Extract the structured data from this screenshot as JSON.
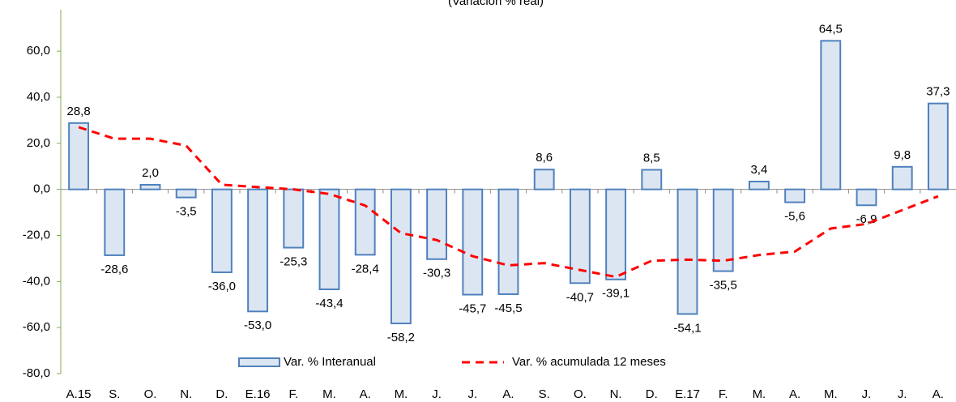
{
  "chart_data": {
    "type": "bar",
    "title": "(Variación % real)",
    "categories": [
      "A.15",
      "S.",
      "O.",
      "N.",
      "D.",
      "E.16",
      "F.",
      "M.",
      "A.",
      "M.",
      "J.",
      "J.",
      "A.",
      "S.",
      "O.",
      "N.",
      "D.",
      "E.17",
      "F.",
      "M.",
      "A.",
      "M.",
      "J.",
      "J.",
      "A."
    ],
    "series": [
      {
        "name": "Var. % Interanual",
        "type": "bar",
        "color": "#dce6f2",
        "edge_color": "#4f81bd",
        "values": [
          28.8,
          -28.6,
          2.0,
          -3.5,
          -36.0,
          -53.0,
          -25.3,
          -43.4,
          -28.4,
          -58.2,
          -30.3,
          -45.7,
          -45.5,
          8.6,
          -40.7,
          -39.1,
          8.5,
          -54.1,
          -35.5,
          3.4,
          -5.6,
          64.5,
          -6.9,
          9.8,
          37.3
        ],
        "value_labels": [
          "28,8",
          "-28,6",
          "2,0",
          "-3,5",
          "-36,0",
          "-53,0",
          "-25,3",
          "-43,4",
          "-28,4",
          "-58,2",
          "-30,3",
          "-45,7",
          "-45,5",
          "8,6",
          "-40,7",
          "-39,1",
          "8,5",
          "-54,1",
          "-35,5",
          "3,4",
          "-5,6",
          "64,5",
          "-6,9",
          "9,8",
          "37,3"
        ]
      },
      {
        "name": "Var. % acumulada 12 meses",
        "type": "line",
        "color": "#ff0000",
        "dashed": true,
        "values": [
          27,
          22,
          22,
          19,
          2,
          1,
          0,
          -2,
          -7,
          -19,
          -22,
          -29,
          -33,
          -32,
          -35,
          -38,
          -31,
          -30.5,
          -31,
          -28.5,
          -27,
          -17,
          -15,
          -9,
          -3
        ]
      }
    ],
    "ylim": [
      -80,
      78
    ],
    "yticks": [
      {
        "value": -80,
        "label": "-80,0"
      },
      {
        "value": -60,
        "label": "-60,0"
      },
      {
        "value": -40,
        "label": "-40,0"
      },
      {
        "value": -20,
        "label": "-20,0"
      },
      {
        "value": 0,
        "label": "0,0"
      },
      {
        "value": 20,
        "label": "20,0"
      },
      {
        "value": 40,
        "label": "40,0"
      },
      {
        "value": 60,
        "label": "60,0"
      }
    ],
    "grid": false,
    "legend": "bottom"
  }
}
